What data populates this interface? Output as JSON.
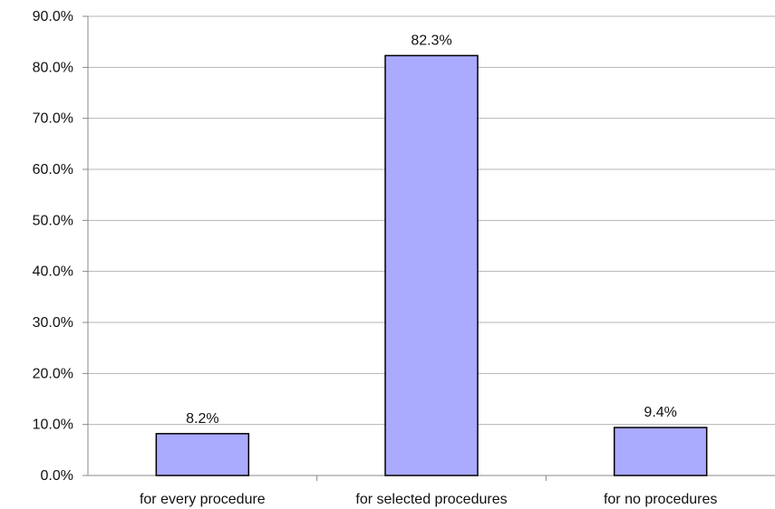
{
  "chart_data": {
    "type": "bar",
    "title": "",
    "xlabel": "",
    "ylabel": "",
    "categories": [
      "for every procedure",
      "for selected procedures",
      "for no procedures"
    ],
    "values": [
      8.2,
      82.3,
      9.4
    ],
    "data_labels": [
      "8.2%",
      "82.3%",
      "9.4%"
    ],
    "ylim": [
      0,
      90
    ],
    "y_ticks": [
      0,
      10,
      20,
      30,
      40,
      50,
      60,
      70,
      80,
      90
    ],
    "y_tick_labels": [
      "0.0%",
      "10.0%",
      "20.0%",
      "30.0%",
      "40.0%",
      "50.0%",
      "60.0%",
      "70.0%",
      "80.0%",
      "90.0%"
    ],
    "grid": true,
    "legend": "none",
    "colors": {
      "bar_fill": "#aaaaff",
      "bar_stroke": "#000000",
      "grid": "#b5b5b5",
      "axis": "#888888"
    }
  }
}
